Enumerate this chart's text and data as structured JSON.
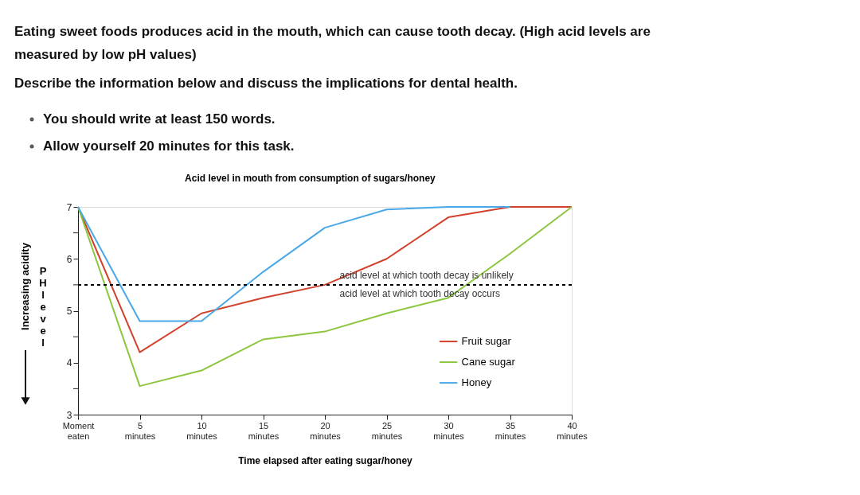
{
  "chart_data": {
    "type": "line",
    "title": "Acid level in mouth from consumption of sugars/honey",
    "xlabel": "Time elapsed after eating sugar/honey",
    "ylabel": "PH level",
    "categories": [
      "Moment eaten",
      "5 minutes",
      "10 minutes",
      "15 minutes",
      "20 minutes",
      "25 minutes",
      "30 minutes",
      "35 minutes",
      "40 minutes"
    ],
    "series": [
      {
        "name": "Fruit sugar",
        "color": "#d2412b",
        "values": [
          7,
          4.2,
          4.95,
          5.25,
          5.5,
          6.0,
          6.8,
          7.0,
          7.0
        ]
      },
      {
        "name": "Cane sugar",
        "color": "#8cc63f",
        "values": [
          7,
          3.55,
          3.85,
          4.45,
          4.6,
          4.95,
          5.25,
          6.1,
          7.0
        ]
      },
      {
        "name": "Honey",
        "color": "#4aa8e8",
        "values": [
          7,
          4.8,
          4.8,
          5.75,
          6.6,
          6.95,
          7.0,
          7.0,
          null
        ]
      }
    ],
    "ylim": [
      3,
      7
    ],
    "yticks": [
      3,
      {
        "value": 3.5,
        "label": null
      },
      4,
      {
        "value": 4.5,
        "label": null
      },
      5,
      {
        "value": 5.5,
        "label": null
      },
      6,
      {
        "value": 6.5,
        "label": null
      },
      7
    ],
    "ref_lines": [
      {
        "axis": "y",
        "value": 5.5,
        "label": "acid level at which tooth decay is unlikely",
        "line_style": "dashed",
        "color": "#000000"
      }
    ],
    "annotations": [
      "Eating sweet foods produces acid in the mouth, which can cause tooth decay. (High acid levels are",
      "measured by low pH values)",
      "Describe the information below and discuss the implications for dental health.",
      "You should write at least 150 words.",
      "Allow yourself 20 minutes for this task.",
      "Increasing acidity",
      {
        "text": "acid level at which tooth decay occurs",
        "y": 5.5
      }
    ],
    "grid": false,
    "legend": "right",
    "marker": "none",
    "line_style": "solid"
  }
}
